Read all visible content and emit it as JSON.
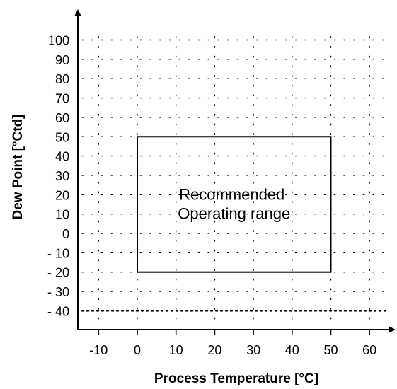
{
  "chart_data": {
    "type": "area",
    "title": "",
    "xlabel": "Process Temperature [°C]",
    "ylabel": "Dew Point [°Ctd]",
    "xlim": [
      -15,
      65
    ],
    "ylim": [
      -50,
      110
    ],
    "x_ticks": [
      -10,
      0,
      10,
      20,
      30,
      40,
      50,
      60
    ],
    "x_tick_labels": [
      "-10",
      "0",
      "10",
      "20",
      "30",
      "40",
      "50",
      "60"
    ],
    "y_ticks": [
      100,
      90,
      80,
      70,
      60,
      50,
      40,
      30,
      20,
      10,
      0,
      -10,
      -20,
      -30,
      -40
    ],
    "y_tick_labels": [
      "100",
      "90",
      "80",
      "70",
      "60",
      "50",
      "40",
      "30",
      "20",
      "10",
      "0",
      "- 10",
      "- 20",
      "- 30",
      "- 40"
    ],
    "grid": true,
    "grid_style": "dotted",
    "region": {
      "x": [
        0,
        50
      ],
      "y": [
        -20,
        50
      ],
      "label_lines": [
        "Recommended",
        "Operating range"
      ]
    }
  }
}
